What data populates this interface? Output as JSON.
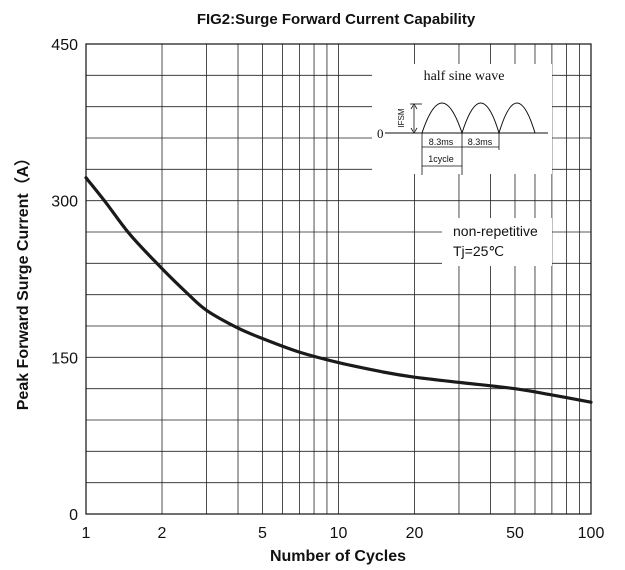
{
  "chart_data": {
    "type": "line",
    "title": "FIG2:Surge Forward Current Capability",
    "xlabel": "Number of Cycles",
    "ylabel": "Peak Forward Surge Current（A）",
    "xscale": "log",
    "xlim": [
      1,
      100
    ],
    "ylim": [
      0,
      450
    ],
    "x_ticks": [
      1,
      2,
      5,
      10,
      20,
      50,
      100
    ],
    "x_tick_labels": [
      "1",
      "2",
      "5",
      "10",
      "20",
      "50",
      "100"
    ],
    "y_ticks": [
      0,
      150,
      300,
      450
    ],
    "y_tick_labels": [
      "0",
      "150",
      "300",
      "450"
    ],
    "grid": true,
    "series": [
      {
        "x": [
          1,
          1.2,
          1.5,
          2,
          2.5,
          3,
          4,
          5,
          7,
          10,
          15,
          20,
          30,
          50,
          70,
          100
        ],
        "y": [
          322,
          298,
          267,
          235,
          212,
          195,
          178,
          168,
          155,
          145,
          136,
          131,
          126,
          120,
          114,
          107
        ]
      }
    ],
    "annotations": [
      "non-repetitive",
      "Tj=25℃"
    ],
    "inset": {
      "title": "half sine wave",
      "ylabel": "IFSM",
      "zero_label": "0",
      "period_labels": [
        "8.3ms",
        "8.3ms"
      ],
      "cycle_label": "1cycle"
    }
  }
}
